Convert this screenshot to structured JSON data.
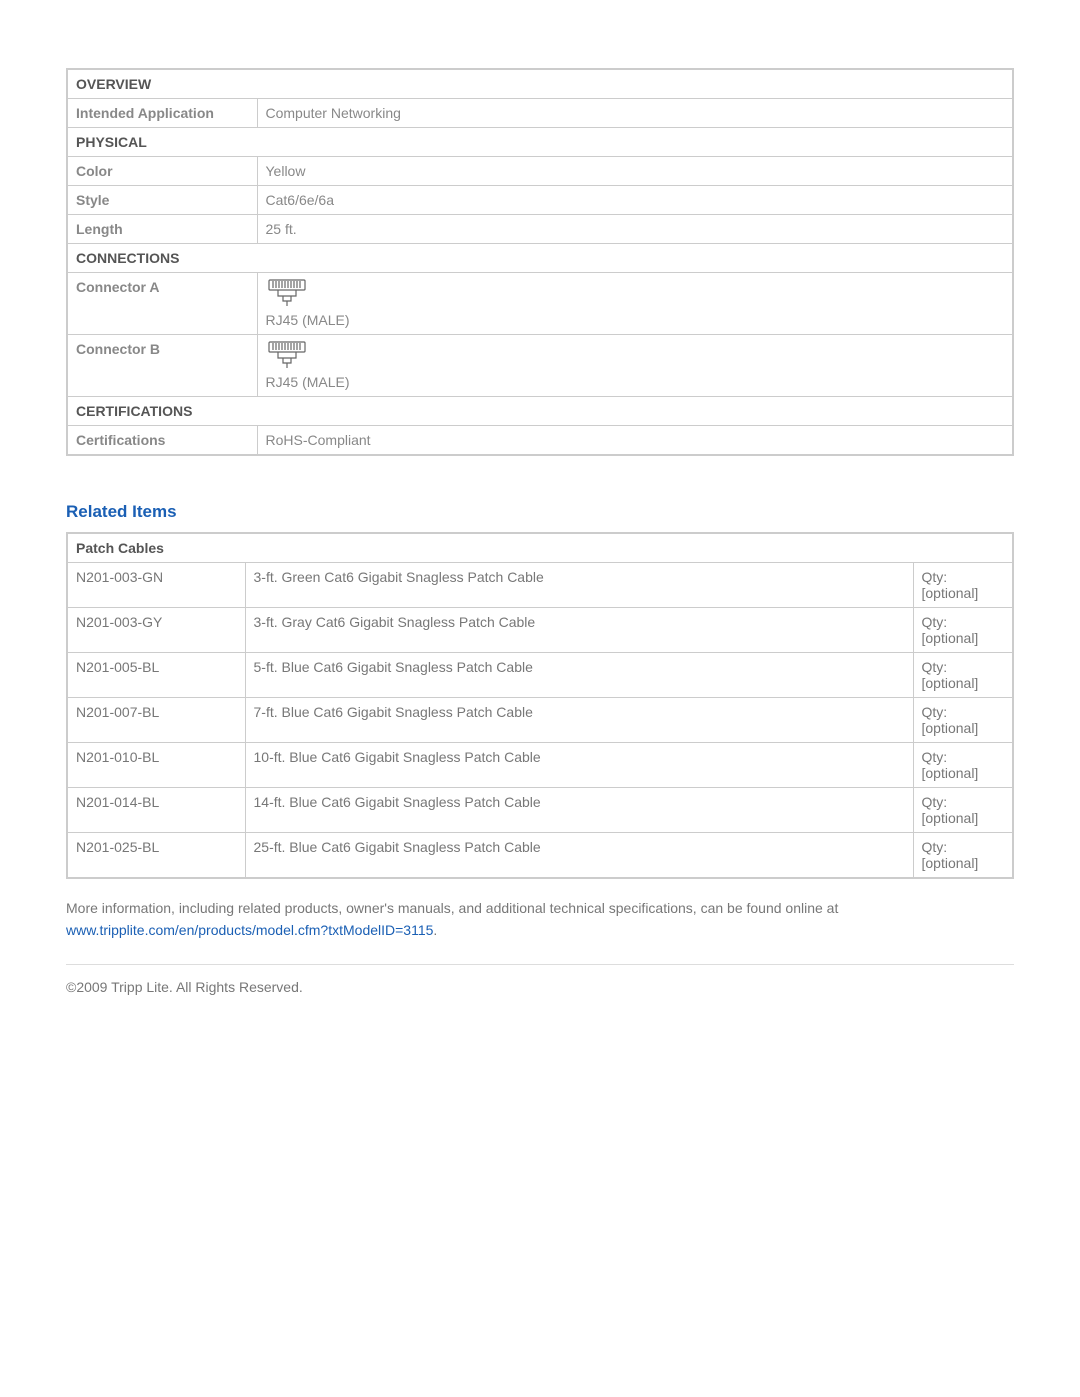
{
  "specs": {
    "sections": [
      {
        "header": "OVERVIEW",
        "rows": [
          {
            "label": "Intended Application",
            "value": "Computer Networking",
            "conn": false
          }
        ]
      },
      {
        "header": "PHYSICAL",
        "rows": [
          {
            "label": "Color",
            "value": "Yellow",
            "conn": false
          },
          {
            "label": "Style",
            "value": "Cat6/6e/6a",
            "conn": false
          },
          {
            "label": "Length",
            "value": "25 ft.",
            "conn": false
          }
        ]
      },
      {
        "header": "CONNECTIONS",
        "rows": [
          {
            "label": "Connector A",
            "value": "RJ45 (MALE)",
            "conn": true
          },
          {
            "label": "Connector B",
            "value": "RJ45 (MALE)",
            "conn": true
          }
        ]
      },
      {
        "header": "CERTIFICATIONS",
        "rows": [
          {
            "label": "Certifications",
            "value": "RoHS-Compliant",
            "conn": false
          }
        ]
      }
    ]
  },
  "related": {
    "heading": "Related Items",
    "group_header": "Patch Cables",
    "items": [
      {
        "sku": "N201-003-GN",
        "desc": "3-ft. Green Cat6 Gigabit Snagless Patch Cable",
        "qty": "Qty: [optional]"
      },
      {
        "sku": "N201-003-GY",
        "desc": "3-ft. Gray Cat6 Gigabit Snagless Patch Cable",
        "qty": "Qty: [optional]"
      },
      {
        "sku": "N201-005-BL",
        "desc": "5-ft. Blue Cat6 Gigabit Snagless Patch Cable",
        "qty": "Qty: [optional]"
      },
      {
        "sku": "N201-007-BL",
        "desc": "7-ft. Blue Cat6 Gigabit Snagless Patch Cable",
        "qty": "Qty: [optional]"
      },
      {
        "sku": "N201-010-BL",
        "desc": "10-ft. Blue Cat6 Gigabit Snagless Patch Cable",
        "qty": "Qty: [optional]"
      },
      {
        "sku": "N201-014-BL",
        "desc": "14-ft. Blue Cat6 Gigabit Snagless Patch Cable",
        "qty": "Qty: [optional]"
      },
      {
        "sku": "N201-025-BL",
        "desc": "25-ft. Blue Cat6 Gigabit Snagless Patch Cable",
        "qty": "Qty: [optional]"
      }
    ]
  },
  "footer": {
    "lead": "More information, including related products, owner's manuals, and additional technical specifications, can be found online at ",
    "link_text": "www.tripplite.com/en/products/model.cfm?txtModelID=3115",
    "period": ".",
    "copyright": "©2009 Tripp Lite.  All Rights Reserved."
  },
  "style": {
    "border_color": "#cccccc",
    "text_color": "#777777",
    "heading_color": "#1a5fb4",
    "link_color": "#1a5fb4"
  }
}
